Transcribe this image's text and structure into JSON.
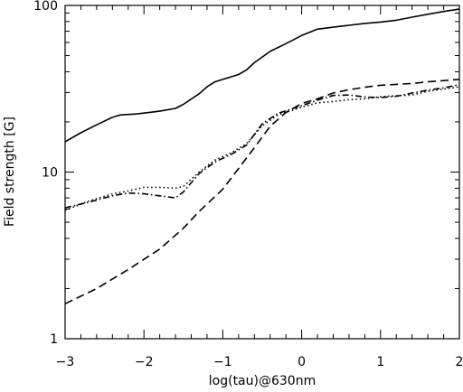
{
  "chart_data": {
    "type": "line",
    "title": "",
    "xlabel": "log(tau)@630nm",
    "ylabel": "Field strength [G]",
    "xlim": [
      -3,
      2
    ],
    "ylim": [
      1,
      100
    ],
    "yscale": "log",
    "grid": false,
    "legend": "none",
    "x_ticks": [
      {
        "value": -3,
        "label": "−3"
      },
      {
        "value": -2,
        "label": "−2"
      },
      {
        "value": -1,
        "label": "−1"
      },
      {
        "value": 0,
        "label": "0"
      },
      {
        "value": 1,
        "label": "1"
      },
      {
        "value": 2,
        "label": "2"
      }
    ],
    "y_ticks": [
      {
        "value": 1,
        "label": "1"
      },
      {
        "value": 10,
        "label": "10"
      },
      {
        "value": 100,
        "label": "100"
      }
    ],
    "series": [
      {
        "style": "solid",
        "x": [
          -3.0,
          -2.8,
          -2.6,
          -2.4,
          -2.3,
          -2.1,
          -2.0,
          -1.8,
          -1.6,
          -1.5,
          -1.3,
          -1.2,
          -1.1,
          -1.0,
          -0.8,
          -0.7,
          -0.6,
          -0.4,
          -0.2,
          0.0,
          0.2,
          0.4,
          0.6,
          0.8,
          1.0,
          1.2,
          1.4,
          1.6,
          1.8,
          2.0
        ],
        "y": [
          15.2,
          17.2,
          19.2,
          21.3,
          22.0,
          22.3,
          22.6,
          23.2,
          24.1,
          25.5,
          29.5,
          32.5,
          34.8,
          36.0,
          38.5,
          41.0,
          45.3,
          53.0,
          59.0,
          66.0,
          72.0,
          74.0,
          76.0,
          78.0,
          79.5,
          81.5,
          85.0,
          88.5,
          92.0,
          95.0
        ]
      },
      {
        "style": "dashed",
        "x": [
          -3.0,
          -2.6,
          -2.2,
          -1.8,
          -1.5,
          -1.3,
          -1.0,
          -0.8,
          -0.6,
          -0.4,
          -0.2,
          0.0,
          0.2,
          0.4,
          0.6,
          0.8,
          1.0,
          1.4,
          1.6,
          2.0
        ],
        "y": [
          1.62,
          2.0,
          2.6,
          3.45,
          4.6,
          5.8,
          7.9,
          10.5,
          14.0,
          18.8,
          22.8,
          25.8,
          27.5,
          29.8,
          31.2,
          32.3,
          33.2,
          34.0,
          34.8,
          36.0
        ]
      },
      {
        "style": "dotted",
        "x": [
          -3.0,
          -2.7,
          -2.4,
          -2.2,
          -2.0,
          -1.8,
          -1.6,
          -1.5,
          -1.3,
          -1.1,
          -0.9,
          -0.7,
          -0.5,
          -0.3,
          0.0,
          0.2,
          0.4,
          0.6,
          0.8,
          1.0,
          1.2,
          1.4,
          1.6,
          1.8,
          2.0
        ],
        "y": [
          5.9,
          6.7,
          7.4,
          7.7,
          8.1,
          8.1,
          8.0,
          8.2,
          10.0,
          11.8,
          13.0,
          14.8,
          19.0,
          22.0,
          24.5,
          26.0,
          26.5,
          27.2,
          27.5,
          28.3,
          28.7,
          29.0,
          30.5,
          31.5,
          32.5
        ]
      },
      {
        "style": "dash-dot",
        "x": [
          -3.0,
          -2.7,
          -2.4,
          -2.2,
          -2.0,
          -1.8,
          -1.6,
          -1.5,
          -1.3,
          -1.1,
          -0.9,
          -0.7,
          -0.5,
          -0.3,
          0.0,
          0.2,
          0.4,
          0.6,
          0.8,
          1.0,
          1.2,
          1.4,
          1.6,
          1.8,
          2.0
        ],
        "y": [
          6.1,
          6.6,
          7.2,
          7.5,
          7.4,
          7.2,
          7.0,
          7.6,
          9.8,
          11.5,
          12.7,
          14.5,
          19.5,
          22.5,
          25.0,
          27.0,
          28.8,
          29.0,
          28.2,
          28.0,
          28.5,
          29.8,
          31.0,
          32.0,
          33.5
        ]
      }
    ]
  }
}
